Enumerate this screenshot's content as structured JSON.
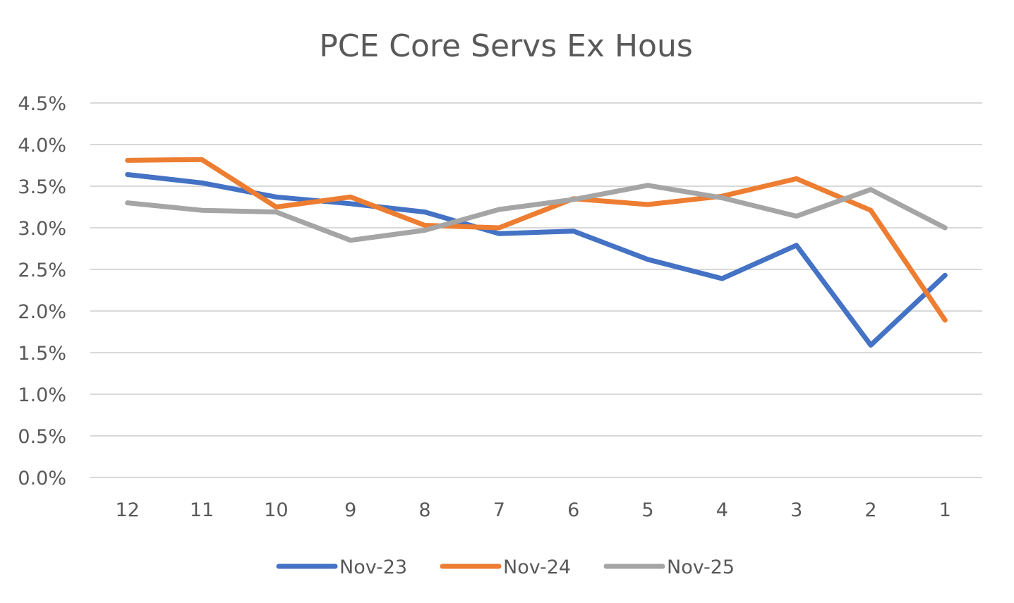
{
  "chart_data": {
    "type": "line",
    "title": "PCE Core Servs Ex Hous",
    "xlabel": "",
    "ylabel": "",
    "categories": [
      "12",
      "11",
      "10",
      "9",
      "8",
      "7",
      "6",
      "5",
      "4",
      "3",
      "2",
      "1"
    ],
    "ylim": [
      0,
      4.5
    ],
    "yticks": [
      0.0,
      0.5,
      1.0,
      1.5,
      2.0,
      2.5,
      3.0,
      3.5,
      4.0,
      4.5
    ],
    "ytick_labels": [
      "0.0%",
      "0.5%",
      "1.0%",
      "1.5%",
      "2.0%",
      "2.5%",
      "3.0%",
      "3.5%",
      "4.0%",
      "4.5%"
    ],
    "grid": true,
    "legend_position": "bottom",
    "series": [
      {
        "name": "Nov-23",
        "color": "#4472c4",
        "values": [
          3.64,
          3.54,
          3.37,
          3.29,
          3.19,
          2.93,
          2.96,
          2.62,
          2.39,
          2.79,
          1.59,
          2.43
        ]
      },
      {
        "name": "Nov-24",
        "color": "#ed7d31",
        "values": [
          3.81,
          3.82,
          3.25,
          3.37,
          3.03,
          3.0,
          3.35,
          3.28,
          3.38,
          3.59,
          3.21,
          1.89
        ]
      },
      {
        "name": "Nov-25",
        "color": "#a5a5a5",
        "values": [
          3.3,
          3.21,
          3.19,
          2.85,
          2.97,
          3.22,
          3.34,
          3.51,
          3.36,
          3.14,
          3.46,
          3.0
        ]
      }
    ]
  }
}
